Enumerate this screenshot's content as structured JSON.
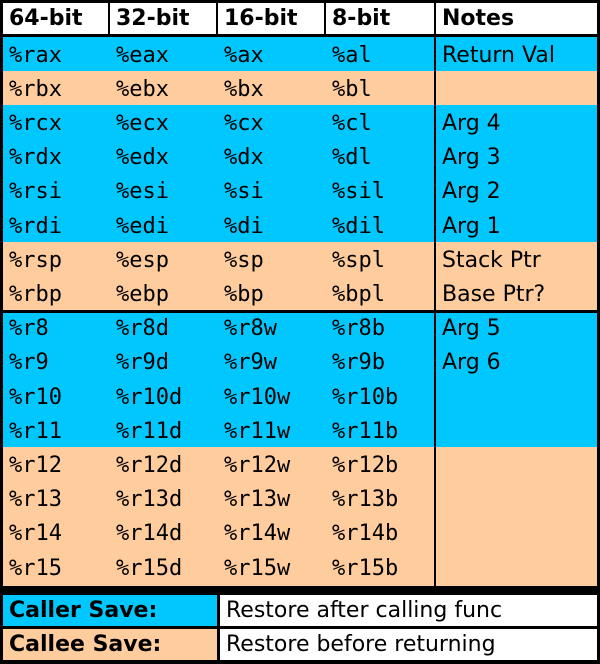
{
  "colors": {
    "caller_save": "#00c8ff",
    "callee_save": "#ffcc9e",
    "header_bg": "#ffffff",
    "border": "#000000"
  },
  "headers": [
    "64-bit",
    "32-bit",
    "16-bit",
    "8-bit",
    "Notes"
  ],
  "rows": [
    {
      "regs": [
        "%rax",
        "%eax",
        "%ax",
        "%al"
      ],
      "note": "Return Val",
      "save": "caller"
    },
    {
      "regs": [
        "%rbx",
        "%ebx",
        "%bx",
        "%bl"
      ],
      "note": "",
      "save": "callee"
    },
    {
      "regs": [
        "%rcx",
        "%ecx",
        "%cx",
        "%cl"
      ],
      "note": "Arg 4",
      "save": "caller"
    },
    {
      "regs": [
        "%rdx",
        "%edx",
        "%dx",
        "%dl"
      ],
      "note": "Arg 3",
      "save": "caller"
    },
    {
      "regs": [
        "%rsi",
        "%esi",
        "%si",
        "%sil"
      ],
      "note": "Arg 2",
      "save": "caller"
    },
    {
      "regs": [
        "%rdi",
        "%edi",
        "%di",
        "%dil"
      ],
      "note": "Arg 1",
      "save": "caller"
    },
    {
      "regs": [
        "%rsp",
        "%esp",
        "%sp",
        "%spl"
      ],
      "note": "Stack Ptr",
      "save": "callee"
    },
    {
      "regs": [
        "%rbp",
        "%ebp",
        "%bp",
        "%bpl"
      ],
      "note": "Base Ptr?",
      "save": "callee"
    },
    {
      "regs": [
        "%r8",
        "%r8d",
        "%r8w",
        "%r8b"
      ],
      "note": "Arg 5",
      "save": "caller"
    },
    {
      "regs": [
        "%r9",
        "%r9d",
        "%r9w",
        "%r9b"
      ],
      "note": "Arg 6",
      "save": "caller"
    },
    {
      "regs": [
        "%r10",
        "%r10d",
        "%r10w",
        "%r10b"
      ],
      "note": "",
      "save": "caller"
    },
    {
      "regs": [
        "%r11",
        "%r11d",
        "%r11w",
        "%r11b"
      ],
      "note": "",
      "save": "caller"
    },
    {
      "regs": [
        "%r12",
        "%r12d",
        "%r12w",
        "%r12b"
      ],
      "note": "",
      "save": "callee"
    },
    {
      "regs": [
        "%r13",
        "%r13d",
        "%r13w",
        "%r13b"
      ],
      "note": "",
      "save": "callee"
    },
    {
      "regs": [
        "%r14",
        "%r14d",
        "%r14w",
        "%r14b"
      ],
      "note": "",
      "save": "callee"
    },
    {
      "regs": [
        "%r15",
        "%r15d",
        "%r15w",
        "%r15b"
      ],
      "note": "",
      "save": "callee"
    }
  ],
  "legend": [
    {
      "key": "Caller Save:",
      "value": "Restore after calling func",
      "save": "caller"
    },
    {
      "key": "Callee Save:",
      "value": "Restore before returning",
      "save": "callee"
    }
  ]
}
